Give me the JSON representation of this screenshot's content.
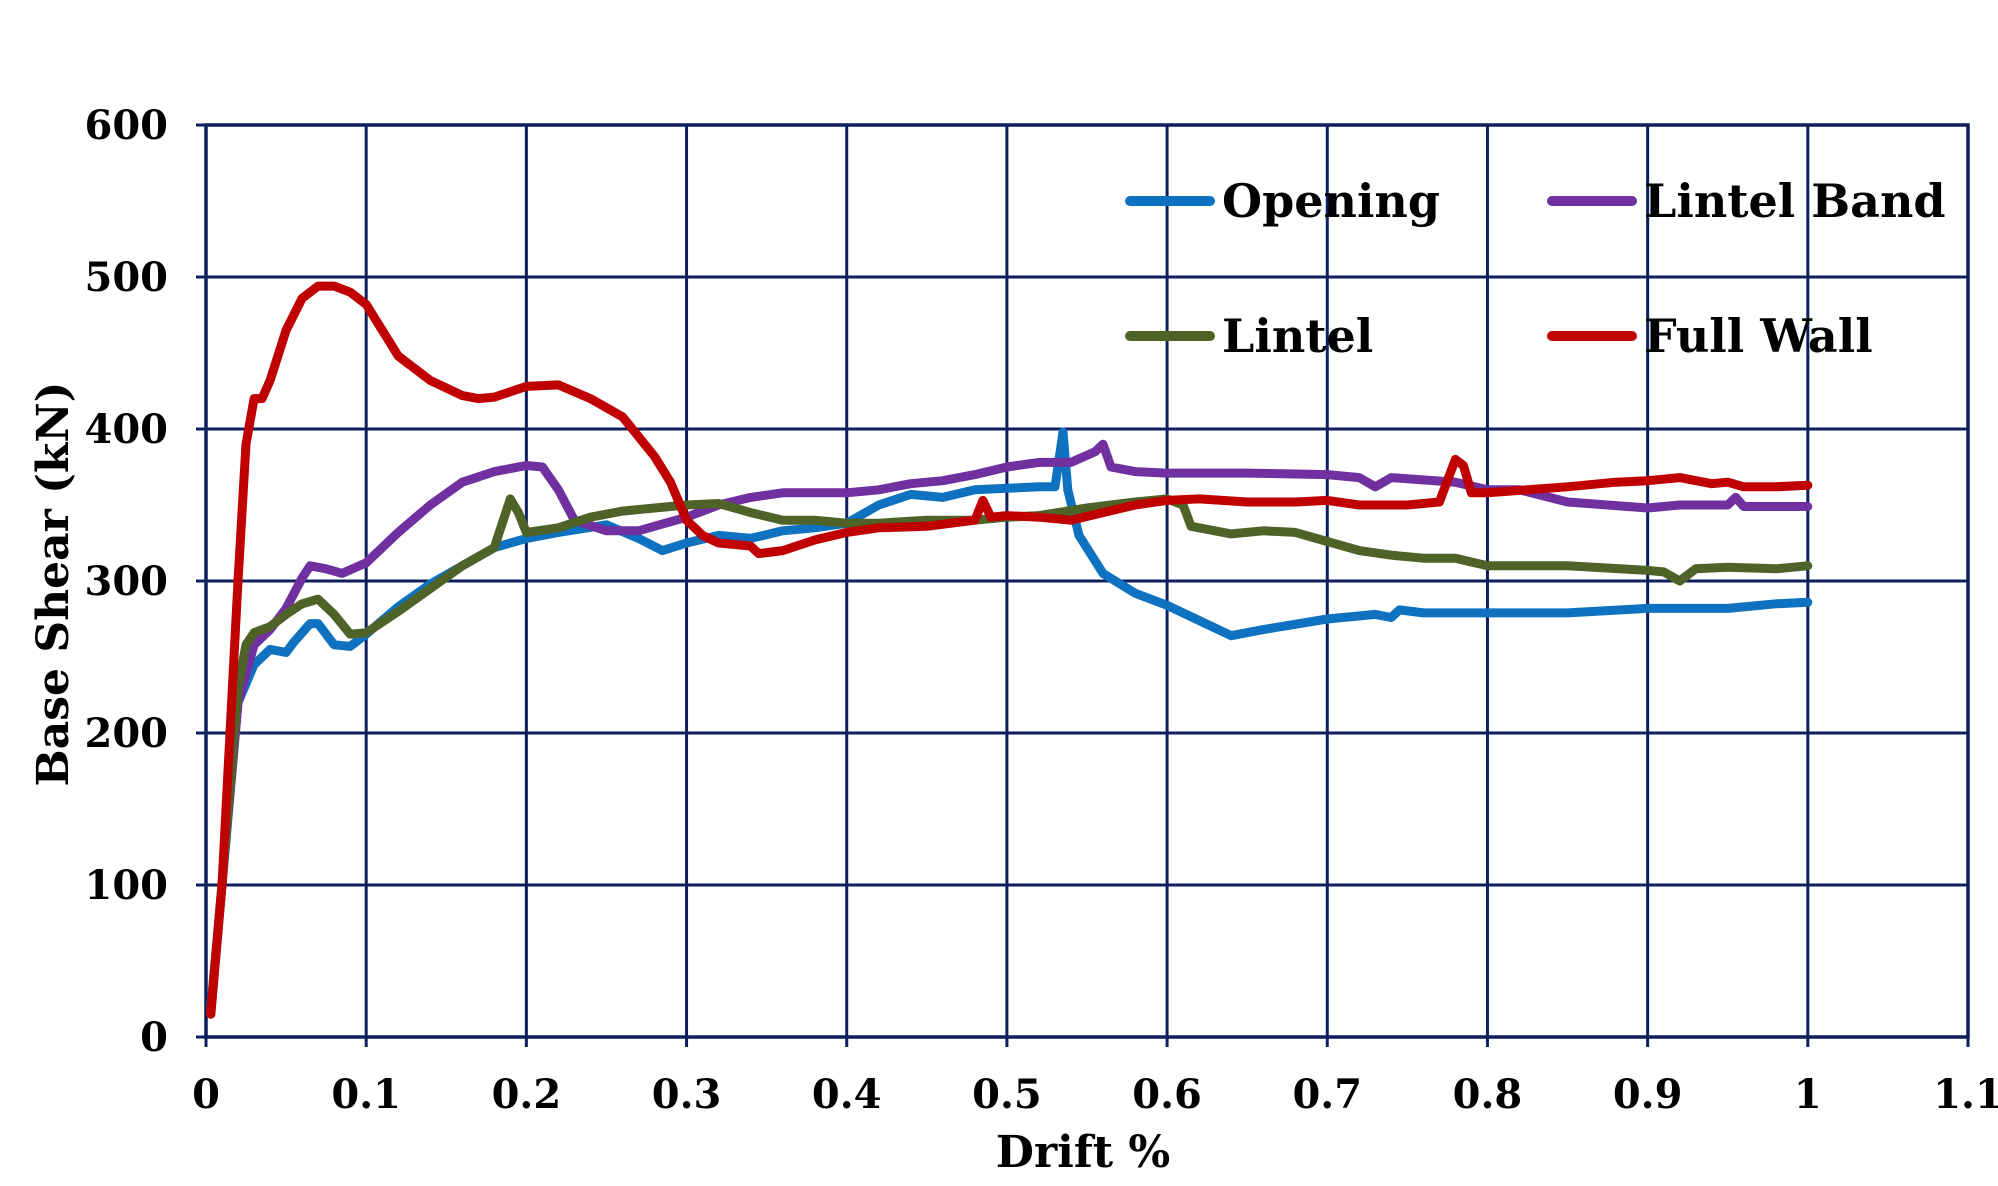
{
  "chart_data": {
    "type": "line",
    "title": "",
    "xlabel": "Drift %",
    "ylabel": "Base Shear (kN)",
    "xlim": [
      0,
      1.1
    ],
    "ylim": [
      0,
      600
    ],
    "x_ticks": [
      "0",
      "0.1",
      "0.2",
      "0.3",
      "0.4",
      "0.5",
      "0.6",
      "0.7",
      "0.8",
      "0.9",
      "1",
      "1.1"
    ],
    "y_ticks": [
      "0",
      "100",
      "200",
      "300",
      "400",
      "500",
      "600"
    ],
    "grid": true,
    "legend_position": "top-right",
    "colors": {
      "grid": "#0d1f5c",
      "axis": "#0d1f5c",
      "Opening": "#0f72c1",
      "Lintel Band": "#7030a0",
      "Lintel": "#4f6228",
      "Full Wall": "#c00000"
    },
    "series": [
      {
        "name": "Opening",
        "points": [
          [
            0.003,
            15
          ],
          [
            0.01,
            100
          ],
          [
            0.02,
            220
          ],
          [
            0.03,
            245
          ],
          [
            0.04,
            255
          ],
          [
            0.05,
            253
          ],
          [
            0.055,
            260
          ],
          [
            0.065,
            272
          ],
          [
            0.07,
            272
          ],
          [
            0.08,
            258
          ],
          [
            0.09,
            257
          ],
          [
            0.1,
            265
          ],
          [
            0.12,
            283
          ],
          [
            0.14,
            298
          ],
          [
            0.16,
            310
          ],
          [
            0.18,
            322
          ],
          [
            0.2,
            328
          ],
          [
            0.22,
            332
          ],
          [
            0.25,
            337
          ],
          [
            0.27,
            328
          ],
          [
            0.285,
            320
          ],
          [
            0.3,
            325
          ],
          [
            0.32,
            330
          ],
          [
            0.34,
            328
          ],
          [
            0.36,
            333
          ],
          [
            0.38,
            335
          ],
          [
            0.4,
            338
          ],
          [
            0.42,
            350
          ],
          [
            0.44,
            357
          ],
          [
            0.46,
            355
          ],
          [
            0.48,
            360
          ],
          [
            0.5,
            361
          ],
          [
            0.52,
            362
          ],
          [
            0.53,
            362
          ],
          [
            0.535,
            398
          ],
          [
            0.538,
            360
          ],
          [
            0.545,
            330
          ],
          [
            0.56,
            305
          ],
          [
            0.58,
            292
          ],
          [
            0.6,
            284
          ],
          [
            0.62,
            274
          ],
          [
            0.64,
            264
          ],
          [
            0.66,
            268
          ],
          [
            0.7,
            275
          ],
          [
            0.73,
            278
          ],
          [
            0.74,
            276
          ],
          [
            0.745,
            281
          ],
          [
            0.76,
            279
          ],
          [
            0.8,
            279
          ],
          [
            0.85,
            279
          ],
          [
            0.9,
            282
          ],
          [
            0.95,
            282
          ],
          [
            0.98,
            285
          ],
          [
            1.0,
            286
          ]
        ]
      },
      {
        "name": "Lintel Band",
        "points": [
          [
            0.003,
            18
          ],
          [
            0.01,
            100
          ],
          [
            0.02,
            220
          ],
          [
            0.03,
            258
          ],
          [
            0.04,
            268
          ],
          [
            0.05,
            282
          ],
          [
            0.06,
            302
          ],
          [
            0.065,
            310
          ],
          [
            0.075,
            308
          ],
          [
            0.085,
            305
          ],
          [
            0.1,
            312
          ],
          [
            0.12,
            332
          ],
          [
            0.14,
            350
          ],
          [
            0.16,
            365
          ],
          [
            0.18,
            372
          ],
          [
            0.2,
            376
          ],
          [
            0.21,
            375
          ],
          [
            0.22,
            360
          ],
          [
            0.23,
            340
          ],
          [
            0.25,
            333
          ],
          [
            0.27,
            333
          ],
          [
            0.3,
            342
          ],
          [
            0.32,
            350
          ],
          [
            0.34,
            355
          ],
          [
            0.36,
            358
          ],
          [
            0.38,
            358
          ],
          [
            0.4,
            358
          ],
          [
            0.42,
            360
          ],
          [
            0.44,
            364
          ],
          [
            0.46,
            366
          ],
          [
            0.48,
            370
          ],
          [
            0.5,
            375
          ],
          [
            0.52,
            378
          ],
          [
            0.54,
            378
          ],
          [
            0.555,
            385
          ],
          [
            0.56,
            390
          ],
          [
            0.565,
            375
          ],
          [
            0.58,
            372
          ],
          [
            0.6,
            371
          ],
          [
            0.65,
            371
          ],
          [
            0.7,
            370
          ],
          [
            0.72,
            368
          ],
          [
            0.73,
            362
          ],
          [
            0.74,
            368
          ],
          [
            0.78,
            365
          ],
          [
            0.8,
            360
          ],
          [
            0.82,
            360
          ],
          [
            0.85,
            352
          ],
          [
            0.9,
            348
          ],
          [
            0.92,
            350
          ],
          [
            0.95,
            350
          ],
          [
            0.955,
            355
          ],
          [
            0.96,
            349
          ],
          [
            1.0,
            349
          ]
        ]
      },
      {
        "name": "Lintel",
        "points": [
          [
            0.003,
            18
          ],
          [
            0.01,
            100
          ],
          [
            0.02,
            230
          ],
          [
            0.025,
            258
          ],
          [
            0.03,
            266
          ],
          [
            0.04,
            270
          ],
          [
            0.05,
            278
          ],
          [
            0.06,
            285
          ],
          [
            0.07,
            288
          ],
          [
            0.08,
            278
          ],
          [
            0.09,
            265
          ],
          [
            0.1,
            266
          ],
          [
            0.12,
            280
          ],
          [
            0.14,
            295
          ],
          [
            0.16,
            310
          ],
          [
            0.18,
            322
          ],
          [
            0.185,
            338
          ],
          [
            0.19,
            354
          ],
          [
            0.195,
            345
          ],
          [
            0.2,
            332
          ],
          [
            0.22,
            335
          ],
          [
            0.24,
            342
          ],
          [
            0.26,
            346
          ],
          [
            0.28,
            348
          ],
          [
            0.3,
            350
          ],
          [
            0.32,
            351
          ],
          [
            0.34,
            345
          ],
          [
            0.36,
            340
          ],
          [
            0.38,
            340
          ],
          [
            0.4,
            338
          ],
          [
            0.42,
            338
          ],
          [
            0.45,
            340
          ],
          [
            0.48,
            340
          ],
          [
            0.5,
            342
          ],
          [
            0.52,
            343
          ],
          [
            0.55,
            348
          ],
          [
            0.58,
            352
          ],
          [
            0.6,
            354
          ],
          [
            0.61,
            350
          ],
          [
            0.615,
            336
          ],
          [
            0.64,
            331
          ],
          [
            0.66,
            333
          ],
          [
            0.68,
            332
          ],
          [
            0.7,
            326
          ],
          [
            0.72,
            320
          ],
          [
            0.74,
            317
          ],
          [
            0.76,
            315
          ],
          [
            0.78,
            315
          ],
          [
            0.8,
            310
          ],
          [
            0.85,
            310
          ],
          [
            0.9,
            307
          ],
          [
            0.91,
            306
          ],
          [
            0.92,
            300
          ],
          [
            0.93,
            308
          ],
          [
            0.95,
            309
          ],
          [
            0.98,
            308
          ],
          [
            1.0,
            310
          ]
        ]
      },
      {
        "name": "Full Wall",
        "points": [
          [
            0.003,
            15
          ],
          [
            0.01,
            100
          ],
          [
            0.02,
            300
          ],
          [
            0.025,
            390
          ],
          [
            0.03,
            420
          ],
          [
            0.035,
            420
          ],
          [
            0.04,
            432
          ],
          [
            0.05,
            465
          ],
          [
            0.06,
            486
          ],
          [
            0.07,
            494
          ],
          [
            0.08,
            494
          ],
          [
            0.09,
            490
          ],
          [
            0.1,
            482
          ],
          [
            0.11,
            465
          ],
          [
            0.12,
            448
          ],
          [
            0.14,
            432
          ],
          [
            0.16,
            422
          ],
          [
            0.17,
            420
          ],
          [
            0.18,
            421
          ],
          [
            0.2,
            428
          ],
          [
            0.22,
            429
          ],
          [
            0.24,
            420
          ],
          [
            0.26,
            408
          ],
          [
            0.28,
            382
          ],
          [
            0.29,
            365
          ],
          [
            0.3,
            340
          ],
          [
            0.31,
            330
          ],
          [
            0.32,
            325
          ],
          [
            0.34,
            323
          ],
          [
            0.345,
            318
          ],
          [
            0.36,
            320
          ],
          [
            0.38,
            327
          ],
          [
            0.4,
            332
          ],
          [
            0.42,
            335
          ],
          [
            0.45,
            336
          ],
          [
            0.48,
            340
          ],
          [
            0.485,
            353
          ],
          [
            0.49,
            342
          ],
          [
            0.5,
            343
          ],
          [
            0.52,
            342
          ],
          [
            0.54,
            340
          ],
          [
            0.56,
            345
          ],
          [
            0.58,
            350
          ],
          [
            0.6,
            353
          ],
          [
            0.62,
            354
          ],
          [
            0.65,
            352
          ],
          [
            0.68,
            352
          ],
          [
            0.7,
            353
          ],
          [
            0.72,
            350
          ],
          [
            0.75,
            350
          ],
          [
            0.77,
            352
          ],
          [
            0.78,
            380
          ],
          [
            0.785,
            376
          ],
          [
            0.79,
            358
          ],
          [
            0.8,
            358
          ],
          [
            0.85,
            362
          ],
          [
            0.88,
            365
          ],
          [
            0.9,
            366
          ],
          [
            0.92,
            368
          ],
          [
            0.94,
            364
          ],
          [
            0.95,
            365
          ],
          [
            0.96,
            362
          ],
          [
            0.98,
            362
          ],
          [
            1.0,
            363
          ]
        ]
      }
    ]
  }
}
